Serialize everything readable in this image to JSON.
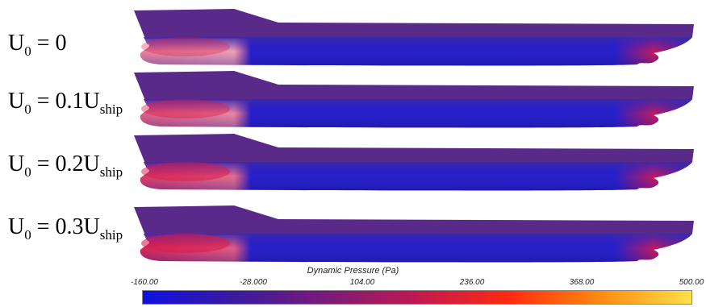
{
  "rows": [
    {
      "label_main": "U",
      "label_sub0": "0",
      "label_eq": " = 0",
      "label_sub": ""
    },
    {
      "label_main": "U",
      "label_sub0": "0",
      "label_eq": " = 0.1U",
      "label_sub": "ship"
    },
    {
      "label_main": "U",
      "label_sub0": "0",
      "label_eq": " = 0.2U",
      "label_sub": "ship"
    },
    {
      "label_main": "U",
      "label_sub0": "0",
      "label_eq": " = 0.3U",
      "label_sub": "ship"
    }
  ],
  "colorbar": {
    "title": "Dynamic Pressure (Pa)",
    "ticks": [
      "-160.00",
      "-28.000",
      "104.00",
      "236.00",
      "368.00",
      "500.00"
    ],
    "colors": [
      "#1010e0",
      "#3a1aa0",
      "#7a1a7a",
      "#c01a50",
      "#ff2a10",
      "#ff8a10",
      "#ffe04a"
    ]
  },
  "hull_colors": {
    "deck": "#5a2a8a",
    "upper_side": "#3a2aa8",
    "lower_side": "#2820c8",
    "bow_high": "#d81a4a",
    "stern_high": "#c01a60"
  }
}
